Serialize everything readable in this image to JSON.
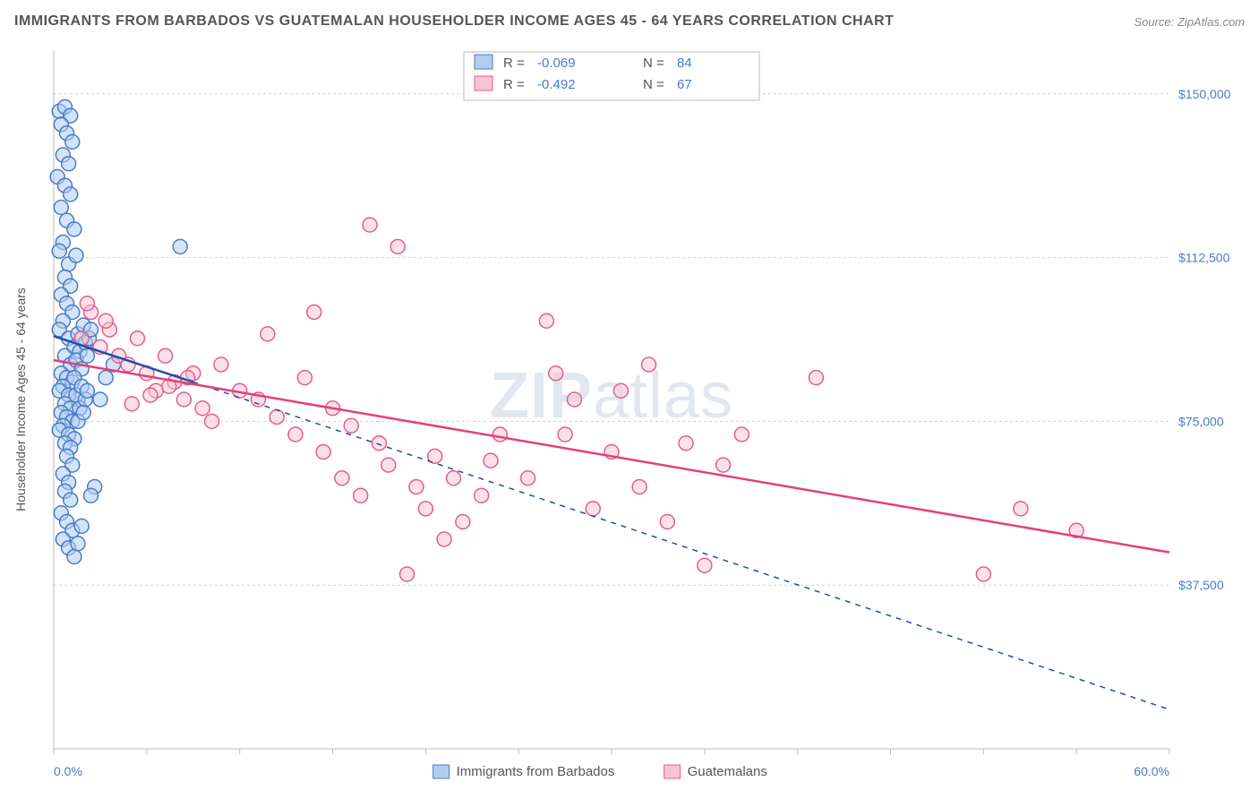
{
  "title": "IMMIGRANTS FROM BARBADOS VS GUATEMALAN HOUSEHOLDER INCOME AGES 45 - 64 YEARS CORRELATION CHART",
  "source": "Source: ZipAtlas.com",
  "ylabel": "Householder Income Ages 45 - 64 years",
  "watermark": "ZIPatlas",
  "chart": {
    "type": "scatter",
    "background_color": "#ffffff",
    "plot_border_color": "#bbbbbb",
    "grid_color": "#d0d0d0",
    "grid_dash": "3 3",
    "xlim": [
      0,
      60
    ],
    "ylim": [
      0,
      160000
    ],
    "x_tick_start": 0,
    "x_tick_step": 5,
    "y_grid_values": [
      37500,
      75000,
      112500,
      150000
    ],
    "y_grid_labels": [
      "$37,500",
      "$75,000",
      "$112,500",
      "$150,000"
    ],
    "x_visible_ticks": [
      {
        "x": 0,
        "label": "0.0%"
      },
      {
        "x": 60,
        "label": "60.0%"
      }
    ],
    "axis_label_color": "#4a7ac7",
    "axis_label_fontsize": 14,
    "title_fontsize": 16,
    "title_color": "#555555",
    "marker_radius": 8,
    "marker_stroke_width": 1.5,
    "trend_line_width": 2.5,
    "trend_dash_width": 1.5
  },
  "legend_top": {
    "rows": [
      {
        "swatch_fill": "#b0cdf0",
        "swatch_stroke": "#4a7ac7",
        "r": "-0.069",
        "n": "84"
      },
      {
        "swatch_fill": "#f7c4d3",
        "swatch_stroke": "#e75a8d",
        "r": "-0.492",
        "n": "67"
      }
    ],
    "r_label": "R =",
    "n_label": "N ="
  },
  "legend_bottom": {
    "items": [
      {
        "swatch_fill": "#b0cdf0",
        "swatch_stroke": "#4a7ac7",
        "label": "Immigrants from Barbados"
      },
      {
        "swatch_fill": "#f7c4d3",
        "swatch_stroke": "#e75a8d",
        "label": "Guatemalans"
      }
    ]
  },
  "series": [
    {
      "name": "Immigrants from Barbados",
      "marker_fill": "#b0cdf0",
      "marker_stroke": "#4a7ac7",
      "marker_fill_opacity": 0.55,
      "trend_color": "#1f4fa8",
      "trend_solid": {
        "x1": 0,
        "y1": 94500,
        "x2": 7.5,
        "y2": 84000
      },
      "trend_dash": {
        "x1": 7.5,
        "y1": 84000,
        "x2": 60,
        "y2": 9000
      },
      "points": [
        [
          0.3,
          146000
        ],
        [
          0.6,
          147000
        ],
        [
          0.9,
          145000
        ],
        [
          0.4,
          143000
        ],
        [
          0.7,
          141000
        ],
        [
          1.0,
          139000
        ],
        [
          0.5,
          136000
        ],
        [
          0.8,
          134000
        ],
        [
          0.2,
          131000
        ],
        [
          0.6,
          129000
        ],
        [
          0.9,
          127000
        ],
        [
          0.4,
          124000
        ],
        [
          0.7,
          121000
        ],
        [
          1.1,
          119000
        ],
        [
          0.5,
          116000
        ],
        [
          0.3,
          114000
        ],
        [
          0.8,
          111000
        ],
        [
          1.2,
          113000
        ],
        [
          0.6,
          108000
        ],
        [
          0.9,
          106000
        ],
        [
          0.4,
          104000
        ],
        [
          0.7,
          102000
        ],
        [
          1.0,
          100000
        ],
        [
          0.5,
          98000
        ],
        [
          0.3,
          96000
        ],
        [
          0.8,
          94000
        ],
        [
          1.1,
          92000
        ],
        [
          0.6,
          90000
        ],
        [
          0.9,
          88000
        ],
        [
          0.4,
          86000
        ],
        [
          0.7,
          85000
        ],
        [
          1.0,
          84000
        ],
        [
          0.5,
          83000
        ],
        [
          0.3,
          82000
        ],
        [
          1.3,
          95000
        ],
        [
          1.6,
          97000
        ],
        [
          1.4,
          91000
        ],
        [
          1.7,
          93000
        ],
        [
          1.2,
          89000
        ],
        [
          1.5,
          87000
        ],
        [
          1.8,
          90000
        ],
        [
          1.1,
          85000
        ],
        [
          1.9,
          94000
        ],
        [
          2.0,
          96000
        ],
        [
          1.3,
          80000
        ],
        [
          0.8,
          81000
        ],
        [
          0.6,
          79000
        ],
        [
          0.9,
          78000
        ],
        [
          0.4,
          77000
        ],
        [
          0.7,
          76000
        ],
        [
          1.0,
          75000
        ],
        [
          0.5,
          74000
        ],
        [
          0.3,
          73000
        ],
        [
          0.8,
          72000
        ],
        [
          1.1,
          71000
        ],
        [
          0.6,
          70000
        ],
        [
          0.9,
          69000
        ],
        [
          1.2,
          81000
        ],
        [
          1.5,
          83000
        ],
        [
          1.4,
          78000
        ],
        [
          1.7,
          80000
        ],
        [
          1.3,
          75000
        ],
        [
          1.6,
          77000
        ],
        [
          1.8,
          82000
        ],
        [
          0.7,
          67000
        ],
        [
          1.0,
          65000
        ],
        [
          0.5,
          63000
        ],
        [
          0.8,
          61000
        ],
        [
          0.6,
          59000
        ],
        [
          0.9,
          57000
        ],
        [
          0.4,
          54000
        ],
        [
          0.7,
          52000
        ],
        [
          1.0,
          50000
        ],
        [
          0.5,
          48000
        ],
        [
          0.8,
          46000
        ],
        [
          1.1,
          44000
        ],
        [
          1.3,
          47000
        ],
        [
          1.5,
          51000
        ],
        [
          2.2,
          60000
        ],
        [
          2.5,
          80000
        ],
        [
          2.8,
          85000
        ],
        [
          3.2,
          88000
        ],
        [
          6.8,
          115000
        ],
        [
          2.0,
          58000
        ]
      ]
    },
    {
      "name": "Guatemalans",
      "marker_fill": "#f7c4d3",
      "marker_stroke": "#e75a8d",
      "marker_fill_opacity": 0.5,
      "trend_color": "#e54077",
      "trend_solid": {
        "x1": 0,
        "y1": 89000,
        "x2": 60,
        "y2": 45000
      },
      "trend_dash": null,
      "points": [
        [
          1.5,
          94000
        ],
        [
          2.0,
          100000
        ],
        [
          2.5,
          92000
        ],
        [
          3.0,
          96000
        ],
        [
          3.5,
          90000
        ],
        [
          4.0,
          88000
        ],
        [
          4.5,
          94000
        ],
        [
          5.0,
          86000
        ],
        [
          5.5,
          82000
        ],
        [
          6.0,
          90000
        ],
        [
          6.5,
          84000
        ],
        [
          7.0,
          80000
        ],
        [
          7.5,
          86000
        ],
        [
          8.0,
          78000
        ],
        [
          4.2,
          79000
        ],
        [
          5.2,
          81000
        ],
        [
          6.2,
          83000
        ],
        [
          7.2,
          85000
        ],
        [
          8.5,
          75000
        ],
        [
          9.0,
          88000
        ],
        [
          10.0,
          82000
        ],
        [
          11.0,
          80000
        ],
        [
          11.5,
          95000
        ],
        [
          12.0,
          76000
        ],
        [
          13.0,
          72000
        ],
        [
          13.5,
          85000
        ],
        [
          14.0,
          100000
        ],
        [
          14.5,
          68000
        ],
        [
          15.0,
          78000
        ],
        [
          15.5,
          62000
        ],
        [
          16.0,
          74000
        ],
        [
          16.5,
          58000
        ],
        [
          17.0,
          120000
        ],
        [
          17.5,
          70000
        ],
        [
          18.5,
          115000
        ],
        [
          18.0,
          65000
        ],
        [
          19.0,
          40000
        ],
        [
          19.5,
          60000
        ],
        [
          20.0,
          55000
        ],
        [
          20.5,
          67000
        ],
        [
          21.0,
          48000
        ],
        [
          21.5,
          62000
        ],
        [
          22.0,
          52000
        ],
        [
          23.0,
          58000
        ],
        [
          23.5,
          66000
        ],
        [
          24.0,
          72000
        ],
        [
          25.5,
          62000
        ],
        [
          26.5,
          98000
        ],
        [
          27.0,
          86000
        ],
        [
          27.5,
          72000
        ],
        [
          28.0,
          80000
        ],
        [
          29.0,
          55000
        ],
        [
          30.0,
          68000
        ],
        [
          30.5,
          82000
        ],
        [
          31.5,
          60000
        ],
        [
          32.0,
          88000
        ],
        [
          33.0,
          52000
        ],
        [
          34.0,
          70000
        ],
        [
          35.0,
          42000
        ],
        [
          36.0,
          65000
        ],
        [
          37.0,
          72000
        ],
        [
          41.0,
          85000
        ],
        [
          50.0,
          40000
        ],
        [
          52.0,
          55000
        ],
        [
          55.0,
          50000
        ],
        [
          1.8,
          102000
        ],
        [
          2.8,
          98000
        ]
      ]
    }
  ]
}
